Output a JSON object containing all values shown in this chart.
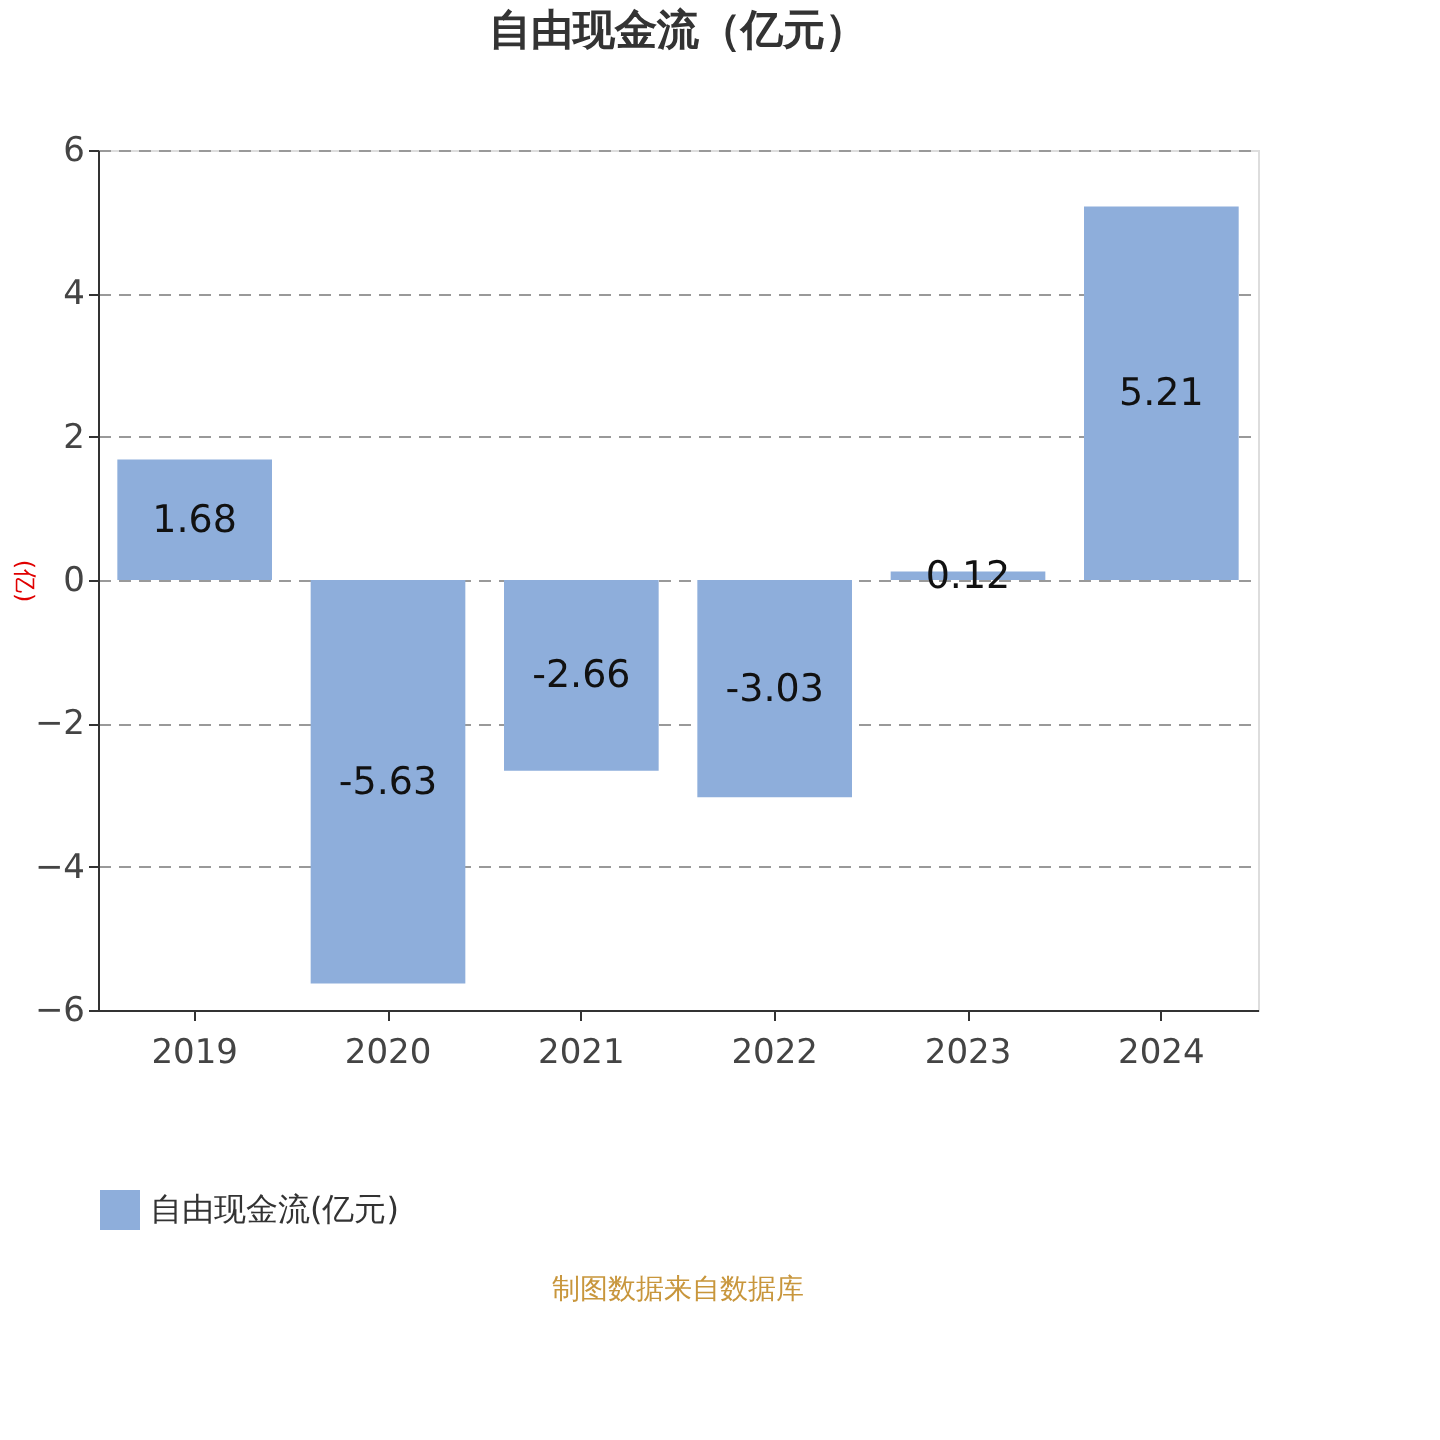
{
  "chart_data": {
    "type": "bar",
    "title": "自由现金流（亿元）",
    "ylabel": "(亿)",
    "categories": [
      "2019",
      "2020",
      "2021",
      "2022",
      "2023",
      "2024"
    ],
    "series": [
      {
        "name": "自由现金流(亿元)",
        "color": "#8eaedb",
        "values": [
          1.68,
          -5.63,
          -2.66,
          -3.03,
          0.12,
          5.21
        ]
      }
    ],
    "ylim": [
      -6,
      6
    ],
    "yticks": [
      -6,
      -4,
      -2,
      0,
      2,
      4,
      6
    ],
    "grid": "y",
    "legend": "bottom",
    "data_labels": true,
    "annotations": [
      "制图数据来自数据库"
    ]
  }
}
